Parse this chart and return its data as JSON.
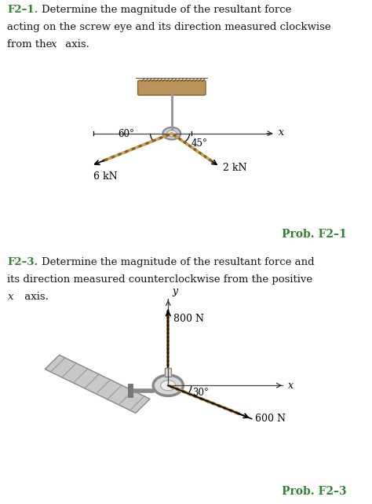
{
  "bg_color": "#ffffff",
  "title1_bold": "F2–1.",
  "prob1_label": "Prob. F2–1",
  "title2_bold": "F2–3.",
  "prob2_label": "Prob. F2–3",
  "green_color": "#2d862d",
  "text_color": "#1a1a1a",
  "rope_color1": "#c8a060",
  "rope_color2": "#8b6010",
  "ceiling_color": "#b8945a",
  "wall_color": "#bbbbbb",
  "axis_color": "#333333",
  "eye_color": "#aaaaaa",
  "rod_color": "#888888",
  "ang6_deg": 210,
  "ang2_deg": 315,
  "ang600_deg": 330,
  "ang800_deg": 90
}
